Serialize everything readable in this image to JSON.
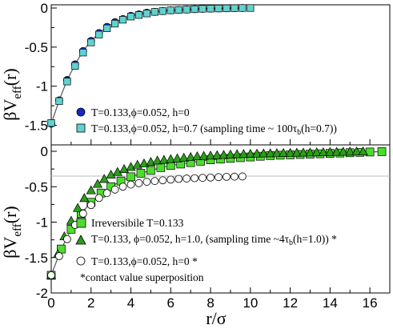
{
  "chart_data": [
    {
      "type": "scatter",
      "panel": "top",
      "ylabel": "βV_eff(r)",
      "xlim": [
        0,
        17
      ],
      "ylim": [
        -1.75,
        0
      ],
      "yticks": [
        0,
        -0.5,
        -1,
        -1.5
      ],
      "ytick_labels": [
        "0",
        "-0.5",
        "-1",
        "-1.5"
      ],
      "grid": false,
      "legend_position": "bottom-left",
      "series": [
        {
          "name": "T=0.133,ϕ=0.052, h=0",
          "marker": "circle",
          "color": "#1428c8",
          "x": [
            0,
            0.4,
            0.8,
            1.2,
            1.6,
            2.0,
            2.4,
            2.8,
            3.2,
            3.6,
            4.0,
            4.4,
            4.8,
            5.2,
            5.6,
            6.0,
            6.4,
            6.8,
            7.2,
            7.6,
            8.0,
            8.4,
            8.8,
            9.2,
            9.6
          ],
          "y": [
            -1.48,
            -1.18,
            -0.92,
            -0.72,
            -0.55,
            -0.42,
            -0.32,
            -0.24,
            -0.18,
            -0.14,
            -0.1,
            -0.08,
            -0.06,
            -0.05,
            -0.04,
            -0.03,
            -0.025,
            -0.02,
            -0.015,
            -0.01,
            -0.008,
            -0.006,
            -0.004,
            -0.002,
            0
          ]
        },
        {
          "name": "T=0.133,ϕ=0.052, h=0.7 (sampling time ~ 100τ_b(h=0.7))",
          "marker": "square",
          "color": "#5fd3d0",
          "x": [
            0,
            0.4,
            0.8,
            1.2,
            1.6,
            2.0,
            2.4,
            2.8,
            3.2,
            3.6,
            4.0,
            4.4,
            4.8,
            5.2,
            5.6,
            6.0,
            6.4,
            6.8,
            7.2,
            7.6,
            8.0,
            8.4,
            8.8,
            9.2,
            9.6,
            10.0
          ],
          "y": [
            -1.47,
            -1.19,
            -0.94,
            -0.74,
            -0.57,
            -0.44,
            -0.34,
            -0.26,
            -0.2,
            -0.15,
            -0.11,
            -0.09,
            -0.07,
            -0.05,
            -0.04,
            -0.03,
            -0.025,
            -0.02,
            -0.015,
            -0.01,
            -0.008,
            -0.006,
            -0.004,
            -0.002,
            0,
            0
          ]
        }
      ]
    },
    {
      "type": "scatter",
      "panel": "bottom",
      "xlabel": "r/σ",
      "ylabel": "βV_eff(r)",
      "xlim": [
        0,
        17
      ],
      "ylim": [
        -2,
        0
      ],
      "xticks": [
        0,
        2,
        4,
        6,
        8,
        10,
        12,
        14,
        16
      ],
      "xtick_labels": [
        "0",
        "2",
        "4",
        "6",
        "8",
        "10",
        "12",
        "14",
        "16"
      ],
      "yticks": [
        0,
        -0.5,
        -1,
        -1.5,
        -2
      ],
      "ytick_labels": [
        "0",
        "-0.5",
        "-1",
        "-1.5",
        "-2"
      ],
      "reference_line_y": -0.35,
      "grid": false,
      "legend_position": "bottom-center",
      "series": [
        {
          "name": "Irreversibile T=0.133",
          "marker": "square",
          "color": "#4ddc2e",
          "x": [
            0,
            0.5,
            1.0,
            1.5,
            2.0,
            2.5,
            3.0,
            3.5,
            4.0,
            4.5,
            5.0,
            5.5,
            6.0,
            6.5,
            7.0,
            7.5,
            8.0,
            8.5,
            9.0,
            9.5,
            10.0,
            10.5,
            11.0,
            11.5,
            12.0,
            12.5,
            13.0,
            13.5,
            14.0,
            14.5,
            15.0,
            15.5,
            16.0,
            16.6
          ],
          "y": [
            -1.75,
            -1.38,
            -1.1,
            -0.88,
            -0.72,
            -0.59,
            -0.5,
            -0.42,
            -0.36,
            -0.31,
            -0.27,
            -0.23,
            -0.2,
            -0.18,
            -0.16,
            -0.14,
            -0.12,
            -0.11,
            -0.1,
            -0.09,
            -0.08,
            -0.07,
            -0.06,
            -0.055,
            -0.05,
            -0.045,
            -0.04,
            -0.035,
            -0.03,
            -0.025,
            -0.02,
            -0.015,
            -0.01,
            -0.005
          ]
        },
        {
          "name": "T=0.133, ϕ=0.052, h=1.0, (sampling time ~4τ_b(h=1.0)) *",
          "marker": "triangle",
          "color": "#2b9e1a",
          "x": [
            0,
            0.33,
            0.66,
            1.0,
            1.33,
            1.66,
            2.0,
            2.33,
            2.66,
            3.0,
            3.33,
            3.66,
            4.0,
            4.33,
            4.66,
            5.0,
            5.33,
            5.66,
            6.0,
            6.33,
            6.66,
            7.0,
            7.33,
            7.66,
            8.0,
            8.33,
            8.66,
            9.0,
            9.33,
            9.66,
            10.0,
            10.33,
            10.66,
            11.0,
            11.33,
            11.66,
            12.0,
            12.33,
            12.66,
            13.0,
            13.33,
            13.66,
            14.0,
            14.33,
            14.66,
            15.0,
            15.33,
            15.66
          ],
          "y": [
            -1.75,
            -1.45,
            -1.2,
            -0.98,
            -0.8,
            -0.66,
            -0.55,
            -0.46,
            -0.39,
            -0.33,
            -0.29,
            -0.25,
            -0.22,
            -0.19,
            -0.17,
            -0.15,
            -0.13,
            -0.12,
            -0.11,
            -0.1,
            -0.09,
            -0.08,
            -0.07,
            -0.065,
            -0.06,
            -0.055,
            -0.05,
            -0.045,
            -0.04,
            -0.038,
            -0.035,
            -0.032,
            -0.03,
            -0.028,
            -0.026,
            -0.024,
            -0.022,
            -0.02,
            -0.018,
            -0.016,
            -0.014,
            -0.012,
            -0.01,
            -0.008,
            -0.006,
            -0.004,
            -0.002,
            -0.001
          ]
        },
        {
          "name": "T=0.133,ϕ=0.052, h=0 *",
          "marker": "open-circle",
          "color": "#000000",
          "x": [
            0,
            0.4,
            0.8,
            1.2,
            1.6,
            2.0,
            2.4,
            2.8,
            3.2,
            3.6,
            4.0,
            4.4,
            4.8,
            5.2,
            5.6,
            6.0,
            6.4,
            6.8,
            7.2,
            7.6,
            8.0,
            8.4,
            8.8,
            9.2,
            9.6
          ],
          "y": [
            -1.75,
            -1.48,
            -1.24,
            -1.04,
            -0.88,
            -0.76,
            -0.66,
            -0.59,
            -0.54,
            -0.5,
            -0.47,
            -0.45,
            -0.43,
            -0.42,
            -0.41,
            -0.4,
            -0.39,
            -0.385,
            -0.38,
            -0.375,
            -0.37,
            -0.365,
            -0.36,
            -0.358,
            -0.355
          ]
        }
      ],
      "annotation": "*contact value superposition"
    }
  ]
}
